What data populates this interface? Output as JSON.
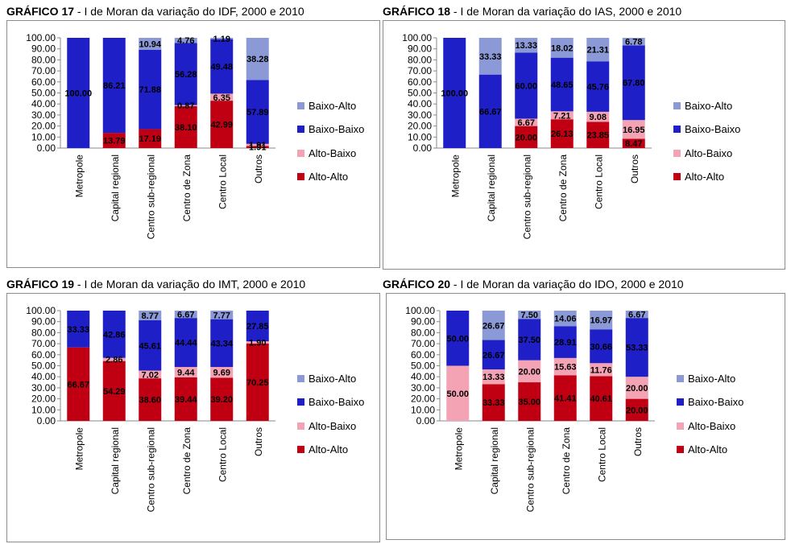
{
  "categories": [
    "Metropole",
    "Capital regional",
    "Centro sub-regional",
    "Centro de Zona",
    "Centro Local",
    "Outros"
  ],
  "y_ticks": [
    "100.00",
    "90.00",
    "80.00",
    "70.00",
    "60.00",
    "50.00",
    "40.00",
    "30.00",
    "20.00",
    "10.00",
    "0.00"
  ],
  "legend": [
    {
      "name": "Baixo-Alto",
      "color": "#8b9ad6"
    },
    {
      "name": "Baixo-Baixo",
      "color": "#1f1fc8"
    },
    {
      "name": "Alto-Baixo",
      "color": "#f4a3b4"
    },
    {
      "name": "Alto-Alto",
      "color": "#c00012"
    }
  ],
  "charts": [
    {
      "label": "GRÁFICO 17",
      "rest": " - I de Moran da variação do IDF, 2000 e 2010"
    },
    {
      "label": "GRÁFICO 18",
      "rest": " - I de Moran da variação do IAS, 2000 e 2010"
    },
    {
      "label": "GRÁFICO 19",
      "rest": " - I de Moran da variação do IMT, 2000 e 2010"
    },
    {
      "label": "GRÁFICO 20",
      "rest": " - I de Moran da variação do IDO, 2000 e 2010"
    }
  ],
  "chart_data": [
    {
      "type": "bar",
      "stacked": true,
      "title": "GRÁFICO 17 - I de Moran da variação do IDF, 2000 e 2010",
      "ylim": [
        0,
        100
      ],
      "legend_position": "right",
      "categories": [
        "Metropole",
        "Capital regional",
        "Centro sub-regional",
        "Centro de Zona",
        "Centro Local",
        "Outros"
      ],
      "series": [
        {
          "name": "Alto-Alto",
          "values": [
            0,
            13.79,
            17.19,
            38.1,
            42.99,
            1.91
          ]
        },
        {
          "name": "Alto-Baixo",
          "values": [
            0,
            0,
            0,
            0.87,
            6.35,
            1.91
          ]
        },
        {
          "name": "Baixo-Baixo",
          "values": [
            100.0,
            86.21,
            71.88,
            56.28,
            49.48,
            57.89
          ]
        },
        {
          "name": "Baixo-Alto",
          "values": [
            0,
            0,
            10.94,
            4.76,
            1.19,
            38.28
          ]
        }
      ]
    },
    {
      "type": "bar",
      "stacked": true,
      "title": "GRÁFICO 18 - I de Moran da variação do IAS, 2000 e 2010",
      "ylim": [
        0,
        100
      ],
      "legend_position": "right",
      "categories": [
        "Metropole",
        "Capital regional",
        "Centro sub-regional",
        "Centro de Zona",
        "Centro Local",
        "Outros"
      ],
      "series": [
        {
          "name": "Alto-Alto",
          "values": [
            0,
            0,
            20.0,
            26.13,
            23.85,
            8.47
          ]
        },
        {
          "name": "Alto-Baixo",
          "values": [
            0,
            0,
            6.67,
            7.21,
            9.08,
            16.95
          ]
        },
        {
          "name": "Baixo-Baixo",
          "values": [
            100.0,
            66.67,
            60.0,
            48.65,
            45.76,
            67.8
          ]
        },
        {
          "name": "Baixo-Alto",
          "values": [
            0,
            33.33,
            13.33,
            18.02,
            21.31,
            6.78
          ]
        }
      ]
    },
    {
      "type": "bar",
      "stacked": true,
      "title": "GRÁFICO 19 - I de Moran da variação do IMT, 2000 e 2010",
      "ylim": [
        0,
        100
      ],
      "legend_position": "right",
      "categories": [
        "Metropole",
        "Capital regional",
        "Centro sub-regional",
        "Centro de Zona",
        "Centro Local",
        "Outros"
      ],
      "series": [
        {
          "name": "Alto-Alto",
          "values": [
            66.67,
            54.29,
            38.6,
            39.44,
            39.2,
            70.25
          ]
        },
        {
          "name": "Alto-Baixo",
          "values": [
            0,
            2.86,
            7.02,
            9.44,
            9.69,
            1.9
          ]
        },
        {
          "name": "Baixo-Baixo",
          "values": [
            33.33,
            42.86,
            45.61,
            44.44,
            43.34,
            27.85
          ]
        },
        {
          "name": "Baixo-Alto",
          "values": [
            0,
            0,
            8.77,
            6.67,
            7.77,
            0
          ]
        }
      ]
    },
    {
      "type": "bar",
      "stacked": true,
      "title": "GRÁFICO 20 - I de Moran da variação do IDO, 2000 e 2010",
      "ylim": [
        0,
        100
      ],
      "legend_position": "right",
      "categories": [
        "Metropole",
        "Capital regional",
        "Centro sub-regional",
        "Centro de Zona",
        "Centro Local",
        "Outros"
      ],
      "series": [
        {
          "name": "Alto-Alto",
          "values": [
            0,
            33.33,
            35.0,
            41.41,
            40.61,
            20.0
          ]
        },
        {
          "name": "Alto-Baixo",
          "values": [
            50.0,
            13.33,
            20.0,
            15.63,
            11.76,
            20.0
          ]
        },
        {
          "name": "Baixo-Baixo",
          "values": [
            50.0,
            26.67,
            37.5,
            28.91,
            30.66,
            53.33
          ]
        },
        {
          "name": "Baixo-Alto",
          "values": [
            0,
            26.67,
            7.5,
            14.06,
            16.97,
            6.67
          ]
        }
      ]
    }
  ]
}
